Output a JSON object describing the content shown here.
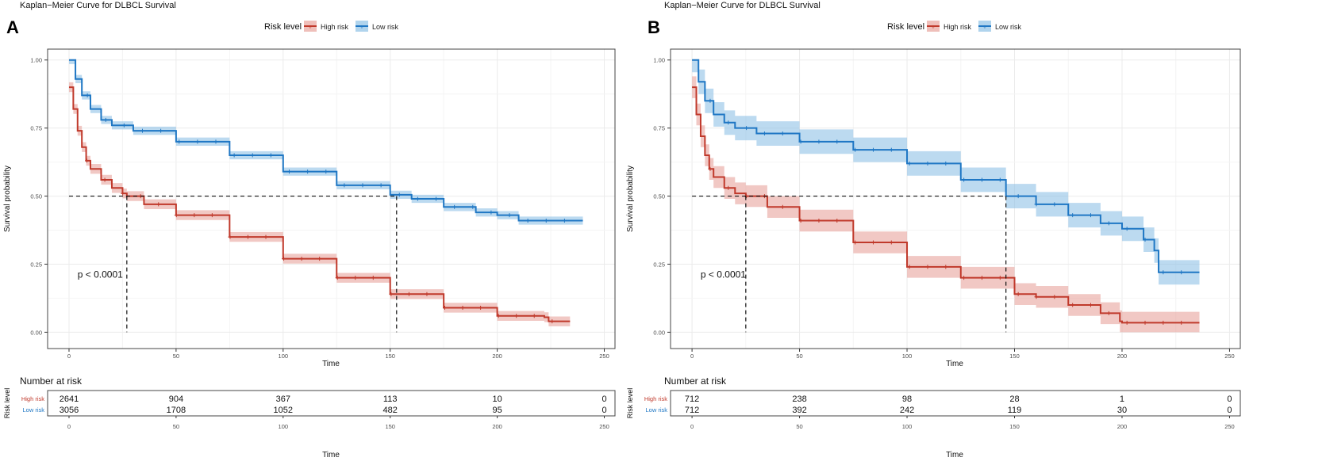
{
  "colors": {
    "high": "#c0392b",
    "low": "#1f77c4",
    "high_band": "#e8a49d",
    "low_band": "#8fc2e6",
    "grid": "#ebebeb",
    "axis": "#333333"
  },
  "chart_data": [
    {
      "type": "line",
      "panel_label": "A",
      "title": "Kaplan−Meier Curve for DLBCL Survival",
      "legend": {
        "title": "Risk level",
        "placement": "top-center",
        "entries": [
          "High risk",
          "Low risk"
        ]
      },
      "xlabel": "Time",
      "ylabel": "Survival probability",
      "xlim": [
        -10,
        255
      ],
      "ylim": [
        0,
        1
      ],
      "xticks": [
        0,
        50,
        100,
        150,
        200,
        250
      ],
      "yticks": [
        "0.00",
        "0.25",
        "0.50",
        "0.75",
        "1.00"
      ],
      "pvalue_label": "p < 0.0001",
      "pvalue_pos": [
        4,
        0.2
      ],
      "median_survival": {
        "High risk": 27,
        "Low risk": 153
      },
      "series": [
        {
          "name": "High risk",
          "x": [
            0,
            2,
            4,
            6,
            8,
            10,
            15,
            20,
            25,
            27,
            35,
            50,
            75,
            100,
            125,
            150,
            175,
            200,
            222,
            224,
            234
          ],
          "y": [
            0.9,
            0.82,
            0.74,
            0.68,
            0.63,
            0.6,
            0.56,
            0.53,
            0.51,
            0.5,
            0.47,
            0.43,
            0.35,
            0.27,
            0.2,
            0.14,
            0.09,
            0.06,
            0.055,
            0.04,
            0.04
          ],
          "band": 0.018
        },
        {
          "name": "Low risk",
          "x": [
            0,
            3,
            6,
            10,
            15,
            20,
            30,
            50,
            75,
            100,
            125,
            150,
            160,
            175,
            190,
            200,
            210,
            240
          ],
          "y": [
            1.0,
            0.93,
            0.87,
            0.82,
            0.78,
            0.76,
            0.74,
            0.7,
            0.65,
            0.59,
            0.54,
            0.505,
            0.49,
            0.46,
            0.44,
            0.43,
            0.41,
            0.41
          ],
          "band": 0.015
        }
      ],
      "risk_table": {
        "title": "Number at risk",
        "ylabel": "Risk level",
        "xlabel": "Time",
        "time_points": [
          0,
          50,
          100,
          150,
          200,
          250
        ],
        "rows": [
          {
            "label": "High risk",
            "values": [
              "2641",
              "904",
              "367",
              "113",
              "10",
              "0"
            ]
          },
          {
            "label": "Low risk",
            "values": [
              "3056",
              "1708",
              "1052",
              "482",
              "95",
              "0"
            ]
          }
        ]
      }
    },
    {
      "type": "line",
      "panel_label": "B",
      "title": "Kaplan−Meier Curve for DLBCL Survival",
      "legend": {
        "title": "Risk level",
        "placement": "top-center",
        "entries": [
          "High risk",
          "Low risk"
        ]
      },
      "xlabel": "Time",
      "ylabel": "Survival probability",
      "xlim": [
        -10,
        255
      ],
      "ylim": [
        0,
        1
      ],
      "xticks": [
        0,
        50,
        100,
        150,
        200,
        250
      ],
      "yticks": [
        "0.00",
        "0.25",
        "0.50",
        "0.75",
        "1.00"
      ],
      "pvalue_label": "p < 0.0001",
      "pvalue_pos": [
        4,
        0.2
      ],
      "median_survival": {
        "High risk": 25,
        "Low risk": 146
      },
      "series": [
        {
          "name": "High risk",
          "x": [
            0,
            2,
            4,
            6,
            8,
            10,
            15,
            20,
            25,
            35,
            50,
            75,
            100,
            125,
            150,
            160,
            175,
            190,
            199,
            200,
            236
          ],
          "y": [
            0.9,
            0.8,
            0.72,
            0.65,
            0.6,
            0.57,
            0.53,
            0.51,
            0.5,
            0.46,
            0.41,
            0.33,
            0.24,
            0.2,
            0.14,
            0.13,
            0.1,
            0.07,
            0.04,
            0.035,
            0.035
          ],
          "band": 0.04
        },
        {
          "name": "Low risk",
          "x": [
            0,
            3,
            6,
            10,
            15,
            20,
            30,
            50,
            75,
            100,
            125,
            146,
            160,
            175,
            190,
            200,
            210,
            215,
            217,
            236
          ],
          "y": [
            1.0,
            0.92,
            0.85,
            0.8,
            0.77,
            0.75,
            0.73,
            0.7,
            0.67,
            0.62,
            0.56,
            0.5,
            0.47,
            0.43,
            0.4,
            0.38,
            0.34,
            0.3,
            0.22,
            0.22
          ],
          "band": 0.045
        }
      ],
      "risk_table": {
        "title": "Number at risk",
        "ylabel": "Risk level",
        "xlabel": "Time",
        "time_points": [
          0,
          50,
          100,
          150,
          200,
          250
        ],
        "rows": [
          {
            "label": "High risk",
            "values": [
              "712",
              "238",
              "98",
              "28",
              "1",
              "0"
            ]
          },
          {
            "label": "Low risk",
            "values": [
              "712",
              "392",
              "242",
              "119",
              "30",
              "0"
            ]
          }
        ]
      }
    }
  ]
}
